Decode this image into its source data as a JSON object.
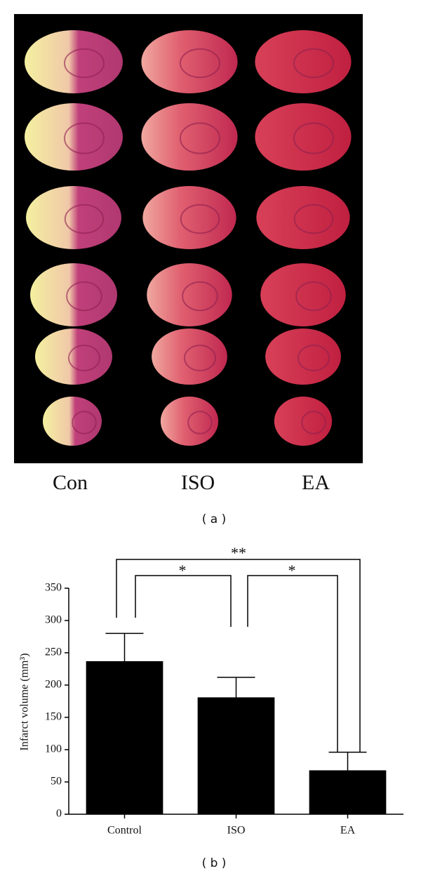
{
  "panel_a": {
    "labels": [
      "Con",
      "ISO",
      "EA"
    ],
    "caption": "( a )"
  },
  "chart_data": {
    "type": "bar",
    "caption": "( b )",
    "y_label": "Infarct volume (mm³)",
    "categories": [
      "Control",
      "ISO",
      "EA"
    ],
    "values": [
      237,
      181,
      68
    ],
    "errors": [
      43,
      31,
      28
    ],
    "color": "#000000",
    "ylim": [
      0,
      350
    ],
    "yticks": [
      0,
      50,
      100,
      150,
      200,
      250,
      300,
      350
    ],
    "annotations": [
      "**",
      "*",
      "*"
    ]
  }
}
